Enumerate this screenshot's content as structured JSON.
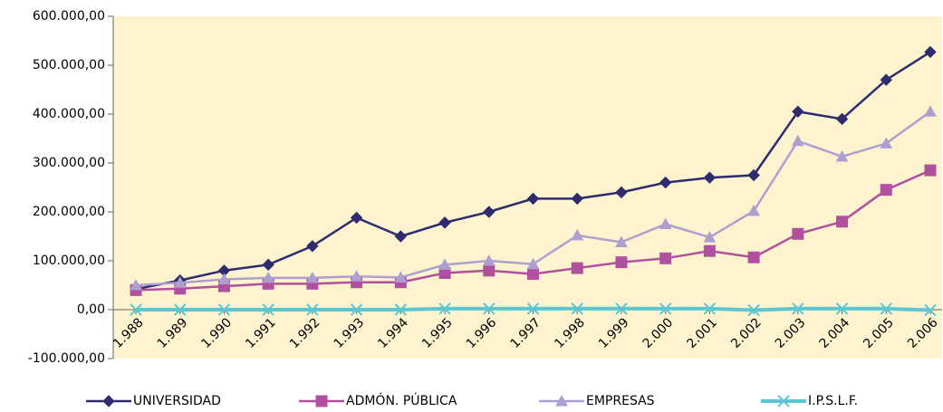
{
  "chart_data": {
    "type": "line",
    "categories": [
      "1.988",
      "1.989",
      "1.990",
      "1.991",
      "1.992",
      "1.993",
      "1.994",
      "1.995",
      "1.996",
      "1.997",
      "1.998",
      "1.999",
      "2.000",
      "2.001",
      "2.002",
      "2.003",
      "2.004",
      "2.005",
      "2.006"
    ],
    "series": [
      {
        "name": "UNIVERSIDAD",
        "color": "#2e2c6e",
        "marker": "diamond",
        "values": [
          42000,
          60000,
          80000,
          92000,
          130000,
          188000,
          150000,
          178000,
          200000,
          227000,
          227000,
          240000,
          260000,
          270000,
          275000,
          405000,
          390000,
          470000,
          527000
        ]
      },
      {
        "name": "ADMÓN. PÚBLICA",
        "color": "#b0509f",
        "marker": "square",
        "values": [
          40000,
          43000,
          48000,
          53000,
          53000,
          56000,
          56000,
          75000,
          80000,
          73000,
          85000,
          97000,
          105000,
          120000,
          107000,
          155000,
          180000,
          245000,
          285000
        ]
      },
      {
        "name": "EMPRESAS",
        "color": "#ad9fd0",
        "marker": "triangle",
        "values": [
          50000,
          55000,
          62000,
          65000,
          65000,
          68000,
          66000,
          92000,
          100000,
          93000,
          152000,
          138000,
          175000,
          148000,
          202000,
          345000,
          313000,
          340000,
          405000
        ]
      },
      {
        "name": "I.P.S.L.F.",
        "color": "#5cc6d2",
        "marker": "x",
        "values": [
          0,
          0,
          0,
          0,
          0,
          0,
          0,
          2000,
          2000,
          2000,
          2000,
          2000,
          2000,
          2000,
          -1000,
          2000,
          2000,
          2000,
          -1000
        ]
      }
    ],
    "ylim": [
      -100000,
      600000
    ],
    "yticks": [
      {
        "value": -100000,
        "label": "-100.000,00"
      },
      {
        "value": 0,
        "label": "0,00"
      },
      {
        "value": 100000,
        "label": "100.000,00"
      },
      {
        "value": 200000,
        "label": "200.000,00"
      },
      {
        "value": 300000,
        "label": "300.000,00"
      },
      {
        "value": 400000,
        "label": "400.000,00"
      },
      {
        "value": 500000,
        "label": "500.000,00"
      },
      {
        "value": 600000,
        "label": "600.000,00"
      }
    ],
    "legend": "bottom"
  }
}
